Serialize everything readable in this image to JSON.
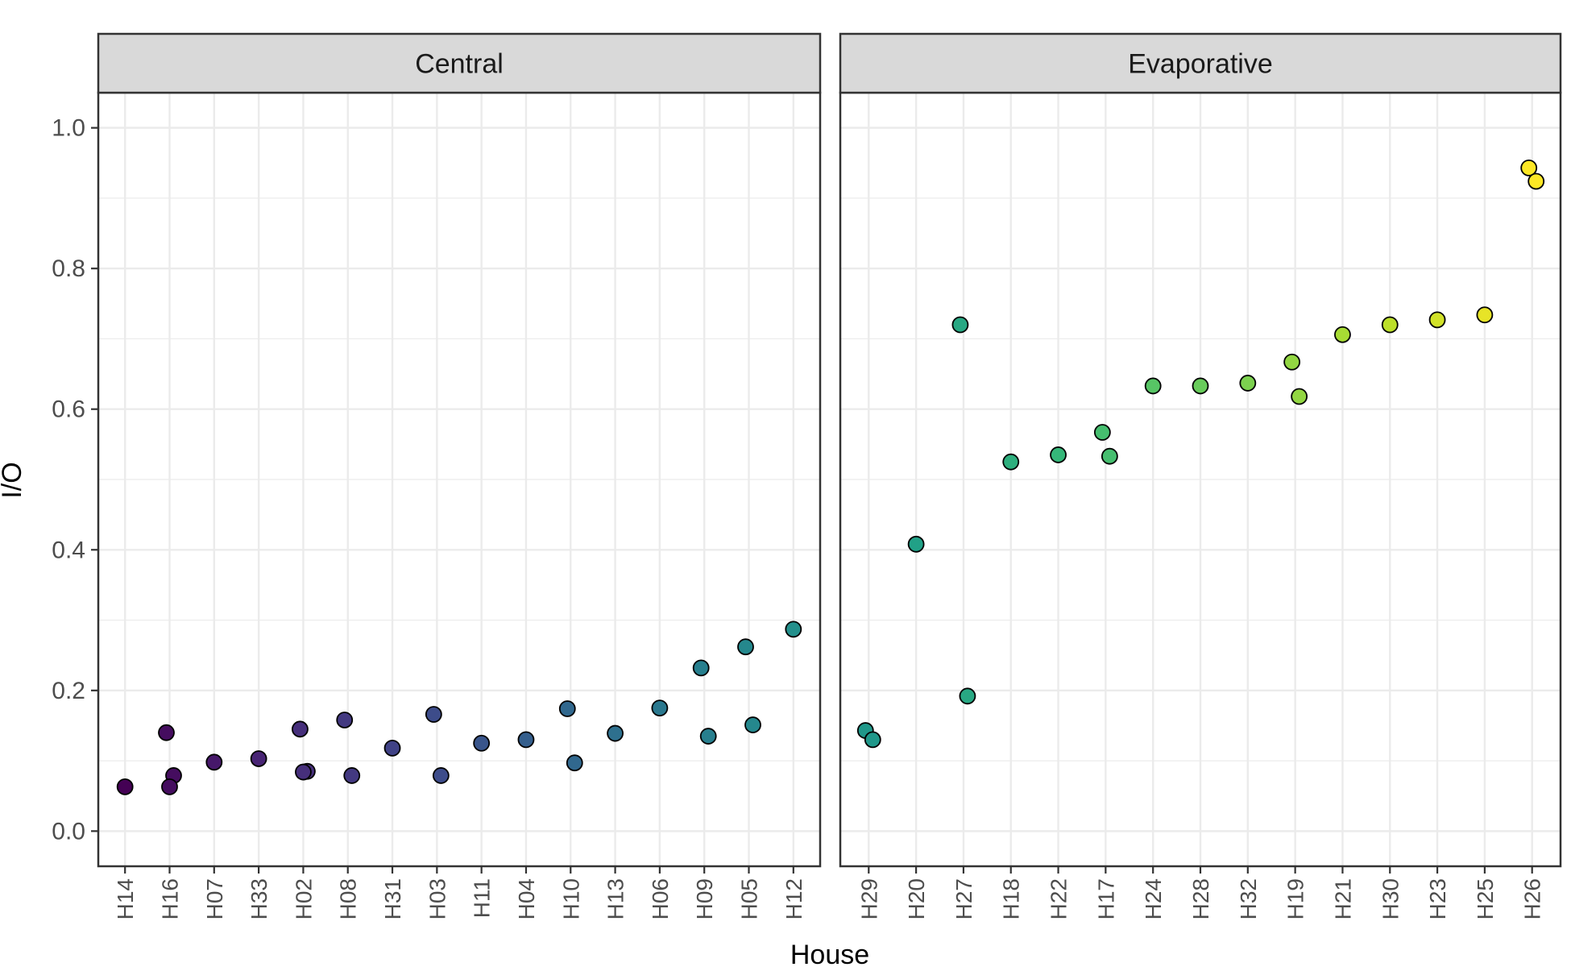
{
  "chart_data": {
    "type": "scatter",
    "xlabel": "House",
    "ylabel": "I/O",
    "ylim": [
      -0.05,
      1.05
    ],
    "yticks": [
      "0.0",
      "0.2",
      "0.4",
      "0.6",
      "0.8",
      "1.0"
    ],
    "grid": true,
    "color_scale": "viridis (point fill varies with house order)",
    "panels": [
      {
        "name": "Central",
        "categories": [
          "H14",
          "H16",
          "H07",
          "H33",
          "H02",
          "H08",
          "H31",
          "H03",
          "H11",
          "H04",
          "H10",
          "H13",
          "H06",
          "H09",
          "H05",
          "H12"
        ],
        "points": [
          {
            "house": "H14",
            "value": 0.063
          },
          {
            "house": "H16",
            "value": 0.14
          },
          {
            "house": "H16",
            "value": 0.079
          },
          {
            "house": "H16",
            "value": 0.063
          },
          {
            "house": "H07",
            "value": 0.098
          },
          {
            "house": "H33",
            "value": 0.103
          },
          {
            "house": "H02",
            "value": 0.145
          },
          {
            "house": "H02",
            "value": 0.085
          },
          {
            "house": "H02",
            "value": 0.084
          },
          {
            "house": "H08",
            "value": 0.158
          },
          {
            "house": "H08",
            "value": 0.079
          },
          {
            "house": "H31",
            "value": 0.118
          },
          {
            "house": "H03",
            "value": 0.166
          },
          {
            "house": "H03",
            "value": 0.079
          },
          {
            "house": "H11",
            "value": 0.125
          },
          {
            "house": "H04",
            "value": 0.13
          },
          {
            "house": "H10",
            "value": 0.174
          },
          {
            "house": "H10",
            "value": 0.097
          },
          {
            "house": "H13",
            "value": 0.139
          },
          {
            "house": "H06",
            "value": 0.175
          },
          {
            "house": "H09",
            "value": 0.232
          },
          {
            "house": "H09",
            "value": 0.135
          },
          {
            "house": "H05",
            "value": 0.262
          },
          {
            "house": "H05",
            "value": 0.151
          },
          {
            "house": "H12",
            "value": 0.287
          }
        ]
      },
      {
        "name": "Evaporative",
        "categories": [
          "H29",
          "H20",
          "H27",
          "H18",
          "H22",
          "H17",
          "H24",
          "H28",
          "H32",
          "H19",
          "H21",
          "H30",
          "H23",
          "H25",
          "H26"
        ],
        "points": [
          {
            "house": "H29",
            "value": 0.143
          },
          {
            "house": "H29",
            "value": 0.13
          },
          {
            "house": "H20",
            "value": 0.408
          },
          {
            "house": "H27",
            "value": 0.72
          },
          {
            "house": "H27",
            "value": 0.192
          },
          {
            "house": "H18",
            "value": 0.525
          },
          {
            "house": "H22",
            "value": 0.535
          },
          {
            "house": "H17",
            "value": 0.567
          },
          {
            "house": "H17",
            "value": 0.533
          },
          {
            "house": "H24",
            "value": 0.633
          },
          {
            "house": "H28",
            "value": 0.633
          },
          {
            "house": "H32",
            "value": 0.637
          },
          {
            "house": "H19",
            "value": 0.667
          },
          {
            "house": "H19",
            "value": 0.618
          },
          {
            "house": "H21",
            "value": 0.706
          },
          {
            "house": "H30",
            "value": 0.72
          },
          {
            "house": "H23",
            "value": 0.727
          },
          {
            "house": "H25",
            "value": 0.734
          },
          {
            "house": "H26",
            "value": 0.943
          },
          {
            "house": "H26",
            "value": 0.924
          }
        ]
      }
    ]
  }
}
